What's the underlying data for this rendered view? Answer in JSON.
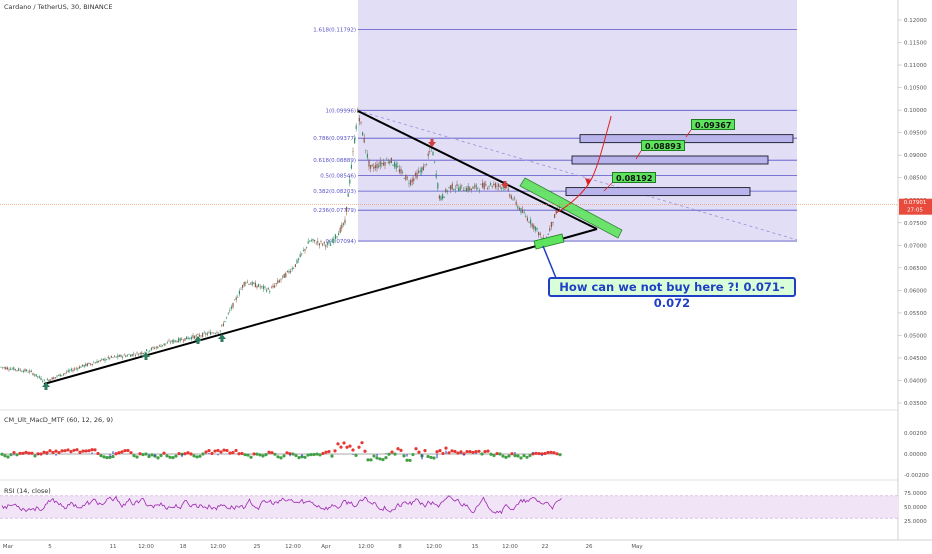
{
  "chart_data": {
    "type": "candlestick",
    "title": "Cardano / TetherUS, 30, BINANCE",
    "price_axis": {
      "ticks": [
        "0.12000",
        "0.11500",
        "0.11000",
        "0.10500",
        "0.10000",
        "0.09500",
        "0.09000",
        "0.08500",
        "0.08000",
        "0.07500",
        "0.07000",
        "0.06500",
        "0.06000",
        "0.05500",
        "0.05000",
        "0.04500",
        "0.04000",
        "0.03500"
      ],
      "range": [
        0.0335,
        0.1225
      ],
      "current_price": "0.07901",
      "current_time": "27:05"
    },
    "time_axis": {
      "ticks": [
        "Mar",
        "5",
        "11",
        "12:00",
        "18",
        "12:00",
        "25",
        "12:00",
        "Apr",
        "12:00",
        "8",
        "12:00",
        "15",
        "12:00",
        "22",
        "26",
        "May"
      ]
    },
    "price_path": [
      [
        0,
        0.043
      ],
      [
        30,
        0.042
      ],
      [
        45,
        0.0398
      ],
      [
        80,
        0.043
      ],
      [
        110,
        0.045
      ],
      [
        140,
        0.046
      ],
      [
        170,
        0.0485
      ],
      [
        200,
        0.05
      ],
      [
        220,
        0.051
      ],
      [
        245,
        0.062
      ],
      [
        270,
        0.06
      ],
      [
        295,
        0.0655
      ],
      [
        310,
        0.071
      ],
      [
        330,
        0.07
      ],
      [
        345,
        0.075
      ],
      [
        358,
        0.0999
      ],
      [
        370,
        0.087
      ],
      [
        390,
        0.089
      ],
      [
        410,
        0.084
      ],
      [
        425,
        0.0875
      ],
      [
        432,
        0.092
      ],
      [
        440,
        0.08
      ],
      [
        450,
        0.083
      ],
      [
        470,
        0.0825
      ],
      [
        490,
        0.0835
      ],
      [
        505,
        0.083
      ],
      [
        520,
        0.078
      ],
      [
        535,
        0.074
      ],
      [
        545,
        0.0705
      ],
      [
        552,
        0.075
      ],
      [
        560,
        0.079
      ]
    ],
    "fibonacci": {
      "high": 0.0999,
      "low": 0.07094,
      "levels": [
        {
          "ratio": "1.618",
          "label": "1.618(0.11792)",
          "price": 0.11792
        },
        {
          "ratio": "1",
          "label": "1(0.09996)",
          "price": 0.09996
        },
        {
          "ratio": "0.786",
          "label": "0.786(0.09377)",
          "price": 0.09377
        },
        {
          "ratio": "0.618",
          "label": "0.618(0.08889)",
          "price": 0.08889
        },
        {
          "ratio": "0.5",
          "label": "0.5(0.08546)",
          "price": 0.08546
        },
        {
          "ratio": "0.382",
          "label": "0.382(0.08203)",
          "price": 0.08203
        },
        {
          "ratio": "0.236",
          "label": "0.236(0.07779)",
          "price": 0.07779
        },
        {
          "ratio": "0",
          "label": "0(0.07094)",
          "price": 0.07094
        }
      ]
    },
    "targets": [
      {
        "label": "0.08192",
        "price": 0.08192
      },
      {
        "label": "0.08893",
        "price": 0.08893
      },
      {
        "label": "0.09367",
        "price": 0.09367
      }
    ],
    "annotation": "How can we not buy here ?! 0.071-0.072",
    "macd": {
      "title": "CM_Ult_MacD_MTF (60, 12, 26, 9)",
      "ticks": [
        "0.00200",
        "0.00000",
        "-0.00200"
      ]
    },
    "rsi": {
      "title": "RSI (14, close)",
      "ticks": [
        "75.0000",
        "50.0000",
        "25.0000"
      ],
      "upper": 70,
      "lower": 30
    },
    "colors": {
      "up": "#26a69a",
      "down": "#ef5350",
      "fib_zone": "#d7d3f1",
      "fib_line": "#5a52c8",
      "rsi_line": "#9c27b0",
      "rsi_band": "#f1e4f7",
      "target_fill": "#5ee35e",
      "annotation_border": "#1f3fc4"
    }
  }
}
